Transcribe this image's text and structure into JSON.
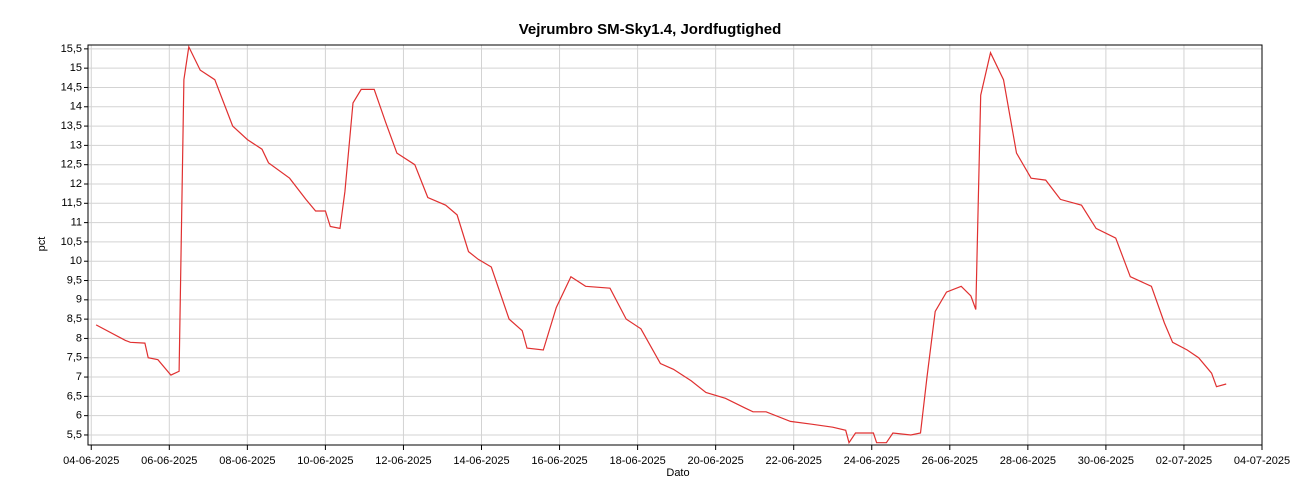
{
  "chart_data": {
    "type": "line",
    "title": "Vejrumbro SM-Sky1.4, Jordfugtighed",
    "x_label": "Dato",
    "y_label": "pct",
    "grid": true,
    "xlim": [
      "2025-06-03T22:00",
      "2025-07-04T00:00"
    ],
    "xticks": [
      {
        "value": "2025-06-04T00:00",
        "label": "04-06-2025"
      },
      {
        "value": "2025-06-06T00:00",
        "label": "06-06-2025"
      },
      {
        "value": "2025-06-08T00:00",
        "label": "08-06-2025"
      },
      {
        "value": "2025-06-10T00:00",
        "label": "10-06-2025"
      },
      {
        "value": "2025-06-12T00:00",
        "label": "12-06-2025"
      },
      {
        "value": "2025-06-14T00:00",
        "label": "14-06-2025"
      },
      {
        "value": "2025-06-16T00:00",
        "label": "16-06-2025"
      },
      {
        "value": "2025-06-18T00:00",
        "label": "18-06-2025"
      },
      {
        "value": "2025-06-20T00:00",
        "label": "20-06-2025"
      },
      {
        "value": "2025-06-22T00:00",
        "label": "22-06-2025"
      },
      {
        "value": "2025-06-24T00:00",
        "label": "24-06-2025"
      },
      {
        "value": "2025-06-26T00:00",
        "label": "26-06-2025"
      },
      {
        "value": "2025-06-28T00:00",
        "label": "28-06-2025"
      },
      {
        "value": "2025-06-30T00:00",
        "label": "30-06-2025"
      },
      {
        "value": "2025-07-02T00:00",
        "label": "02-07-2025"
      },
      {
        "value": "2025-07-04T00:00",
        "label": "04-07-2025"
      }
    ],
    "ylim": [
      5.24,
      15.6
    ],
    "yticks": [
      {
        "value": 5.5,
        "label": "5,5"
      },
      6,
      {
        "value": 6.5,
        "label": "6,5"
      },
      7,
      {
        "value": 7.5,
        "label": "7,5"
      },
      8,
      {
        "value": 8.5,
        "label": "8,5"
      },
      9,
      {
        "value": 9.5,
        "label": "9,5"
      },
      10,
      {
        "value": 10.5,
        "label": "10,5"
      },
      11,
      {
        "value": 11.5,
        "label": "11,5"
      },
      12,
      {
        "value": 12.5,
        "label": "12,5"
      },
      13,
      {
        "value": 13.5,
        "label": "13,5"
      },
      14,
      {
        "value": 14.5,
        "label": "14,5"
      },
      15,
      {
        "value": 15.5,
        "label": "15,5"
      }
    ],
    "series": [
      {
        "color": "#e03030",
        "x": [
          "2025-06-04T03:00",
          "2025-06-04T21:00",
          "2025-06-05T00:00",
          "2025-06-05T09:00",
          "2025-06-05T11:00",
          "2025-06-05T17:00",
          "2025-06-06T01:00",
          "2025-06-06T06:00",
          "2025-06-06T09:00",
          "2025-06-06T12:00",
          "2025-06-06T19:00",
          "2025-06-07T04:00",
          "2025-06-07T15:00",
          "2025-06-08T00:00",
          "2025-06-08T09:00",
          "2025-06-08T13:00",
          "2025-06-09T02:00",
          "2025-06-09T12:00",
          "2025-06-09T18:00",
          "2025-06-10T00:00",
          "2025-06-10T03:00",
          "2025-06-10T09:00",
          "2025-06-10T12:00",
          "2025-06-10T17:00",
          "2025-06-10T22:00",
          "2025-06-11T06:00",
          "2025-06-11T13:00",
          "2025-06-11T20:00",
          "2025-06-12T07:00",
          "2025-06-12T15:00",
          "2025-06-13T02:00",
          "2025-06-13T09:00",
          "2025-06-13T16:00",
          "2025-06-13T22:00",
          "2025-06-14T06:00",
          "2025-06-14T17:00",
          "2025-06-15T01:00",
          "2025-06-15T04:00",
          "2025-06-15T14:00",
          "2025-06-15T22:00",
          "2025-06-16T07:00",
          "2025-06-16T16:00",
          "2025-06-17T07:00",
          "2025-06-17T17:00",
          "2025-06-18T02:00",
          "2025-06-18T14:00",
          "2025-06-18T22:00",
          "2025-06-19T09:00",
          "2025-06-19T18:00",
          "2025-06-20T06:00",
          "2025-06-20T18:00",
          "2025-06-20T23:00",
          "2025-06-21T07:00",
          "2025-06-21T22:00",
          "2025-06-22T11:00",
          "2025-06-23T00:00",
          "2025-06-23T08:00",
          "2025-06-23T10:00",
          "2025-06-23T14:00",
          "2025-06-24T01:00",
          "2025-06-24T03:00",
          "2025-06-24T09:00",
          "2025-06-24T13:00",
          "2025-06-25T00:00",
          "2025-06-25T06:00",
          "2025-06-25T10:00",
          "2025-06-25T15:00",
          "2025-06-25T22:00",
          "2025-06-26T07:00",
          "2025-06-26T13:00",
          "2025-06-26T16:00",
          "2025-06-26T19:00",
          "2025-06-27T01:00",
          "2025-06-27T09:00",
          "2025-06-27T17:00",
          "2025-06-28T02:00",
          "2025-06-28T11:00",
          "2025-06-28T20:00",
          "2025-06-29T09:00",
          "2025-06-29T18:00",
          "2025-06-30T06:00",
          "2025-06-30T15:00",
          "2025-07-01T04:00",
          "2025-07-01T12:00",
          "2025-07-01T17:00",
          "2025-07-02T02:00",
          "2025-07-02T09:00",
          "2025-07-02T17:00",
          "2025-07-02T20:00",
          "2025-07-03T02:00"
        ],
        "values": [
          8.35,
          7.95,
          7.9,
          7.88,
          7.5,
          7.45,
          7.05,
          7.15,
          14.7,
          15.55,
          14.95,
          14.7,
          13.5,
          13.15,
          12.9,
          12.55,
          12.15,
          11.6,
          11.3,
          11.3,
          10.9,
          10.85,
          11.8,
          14.1,
          14.45,
          14.45,
          13.6,
          12.8,
          12.5,
          11.65,
          11.45,
          11.2,
          10.25,
          10.05,
          9.85,
          8.5,
          8.2,
          7.75,
          7.7,
          8.8,
          9.6,
          9.35,
          9.3,
          8.5,
          8.25,
          7.35,
          7.2,
          6.9,
          6.6,
          6.45,
          6.2,
          6.1,
          6.1,
          5.85,
          5.78,
          5.7,
          5.62,
          5.3,
          5.55,
          5.55,
          5.3,
          5.3,
          5.55,
          5.5,
          5.55,
          7.0,
          8.7,
          9.2,
          9.35,
          9.1,
          8.75,
          14.3,
          15.4,
          14.7,
          12.8,
          12.15,
          12.1,
          11.6,
          11.45,
          10.85,
          10.6,
          9.6,
          9.35,
          8.4,
          7.9,
          7.7,
          7.5,
          7.1,
          6.75,
          6.82
        ]
      }
    ]
  }
}
